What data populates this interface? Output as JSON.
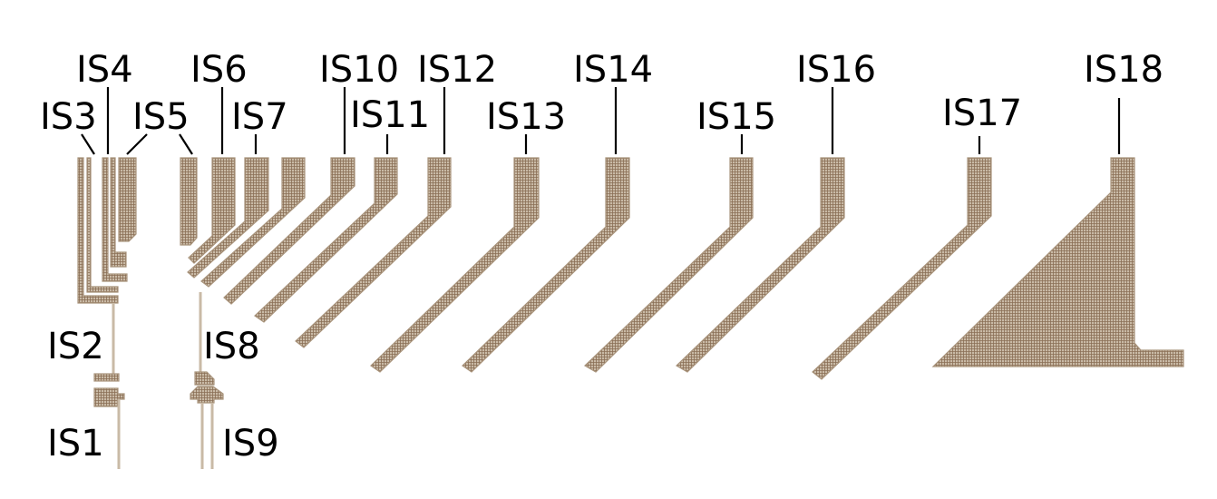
{
  "diagram": {
    "labels": {
      "is1": "IS1",
      "is2": "IS2",
      "is3": "IS3",
      "is4": "IS4",
      "is5": "IS5",
      "is6": "IS6",
      "is7": "IS7",
      "is8": "IS8",
      "is9": "IS9",
      "is10": "IS10",
      "is11": "IS11",
      "is12": "IS12",
      "is13": "IS13",
      "is14": "IS14",
      "is15": "IS15",
      "is16": "IS16",
      "is17": "IS17",
      "is18": "IS18"
    },
    "colors": {
      "fill": "#b8a792",
      "mesh": "#8a6e55",
      "leader": "#000000"
    },
    "pattern": "fine-grid-mesh"
  }
}
